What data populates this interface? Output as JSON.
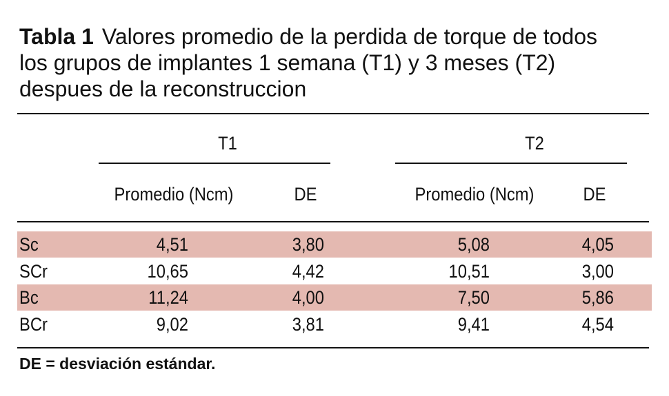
{
  "title": {
    "label": "Tabla 1",
    "text": "Valores promedio de la perdida de torque de todos los grupos de implantes 1 semana (T1) y 3 meses (T2) despues de la reconstruccion"
  },
  "table": {
    "groups": [
      "T1",
      "T2"
    ],
    "columns": [
      "Promedio (Ncm)",
      "DE",
      "Promedio (Ncm)",
      "DE"
    ],
    "rows": [
      [
        "Sc",
        "4,51",
        "3,80",
        "5,08",
        "4,05"
      ],
      [
        "SCr",
        "10,65",
        "4,42",
        "10,51",
        "3,00"
      ],
      [
        "Bc",
        "11,24",
        "4,00",
        "7,50",
        "5,86"
      ],
      [
        "BCr",
        "9,02",
        "3,81",
        "9,41",
        "4,54"
      ]
    ]
  },
  "footnote": "DE = desviación estándar."
}
